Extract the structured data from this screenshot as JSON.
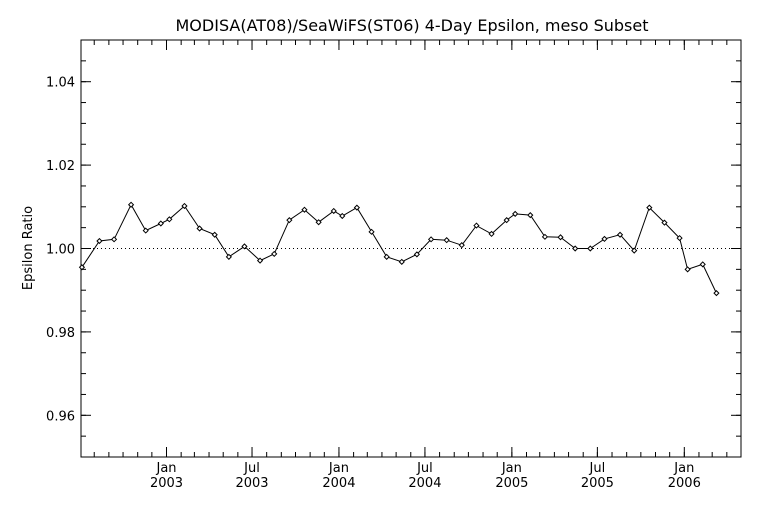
{
  "chart_data": {
    "type": "line",
    "title": "MODISA(AT08)/SeaWiFS(ST06) 4-Day Epsilon, meso Subset",
    "ylabel": "Epsilon Ratio",
    "xlabel": "",
    "ylim": [
      0.95,
      1.05
    ],
    "xlim": [
      "2002-07-04",
      "2006-05-01"
    ],
    "yticks": {
      "major": [
        0.96,
        0.98,
        1.0,
        1.02,
        1.04
      ],
      "labels": [
        "0.96",
        "0.98",
        "1.00",
        "1.02",
        "1.04"
      ],
      "minor_step": 0.005
    },
    "xticks": [
      {
        "date": "2003-01-01",
        "line1": "Jan",
        "line2": "2003"
      },
      {
        "date": "2003-07-01",
        "line1": "Jul",
        "line2": "2003"
      },
      {
        "date": "2004-01-01",
        "line1": "Jan",
        "line2": "2004"
      },
      {
        "date": "2004-07-01",
        "line1": "Jul",
        "line2": "2004"
      },
      {
        "date": "2005-01-01",
        "line1": "Jan",
        "line2": "2005"
      },
      {
        "date": "2005-07-01",
        "line1": "Jul",
        "line2": "2005"
      },
      {
        "date": "2006-01-01",
        "line1": "Jan",
        "line2": "2006"
      }
    ],
    "reference_line": {
      "y": 1.0,
      "style": "dotted"
    },
    "series": [
      {
        "marker": "diamond",
        "color": "#000000",
        "x": [
          "2002-07-06",
          "2002-08-12",
          "2002-09-12",
          "2002-10-18",
          "2002-11-18",
          "2002-12-20",
          "2003-01-07",
          "2003-02-08",
          "2003-03-12",
          "2003-04-13",
          "2003-05-13",
          "2003-06-15",
          "2003-07-18",
          "2003-08-17",
          "2003-09-18",
          "2003-10-20",
          "2003-11-19",
          "2003-12-21",
          "2004-01-08",
          "2004-02-08",
          "2004-03-10",
          "2004-04-11",
          "2004-05-13",
          "2004-06-14",
          "2004-07-14",
          "2004-08-16",
          "2004-09-17",
          "2004-10-18",
          "2004-11-19",
          "2004-12-21",
          "2005-01-08",
          "2005-02-09",
          "2005-03-12",
          "2005-04-14",
          "2005-05-15",
          "2005-06-16",
          "2005-07-16",
          "2005-08-18",
          "2005-09-17",
          "2005-10-19",
          "2005-11-20",
          "2005-12-22",
          "2006-01-08",
          "2006-02-09",
          "2006-03-10"
        ],
        "y": [
          0.9955,
          1.0018,
          1.0022,
          1.0105,
          1.0043,
          1.006,
          1.007,
          1.0102,
          1.0048,
          1.0033,
          0.998,
          1.0005,
          0.9971,
          0.9987,
          1.0068,
          1.0093,
          1.0063,
          1.009,
          1.0078,
          1.0098,
          1.004,
          0.998,
          0.9968,
          0.9986,
          1.0022,
          1.002,
          1.0008,
          1.0055,
          1.0035,
          1.0068,
          1.0083,
          1.008,
          1.0028,
          1.0027,
          1.0,
          1.0,
          1.0023,
          1.0033,
          0.9995,
          1.0098,
          1.0062,
          1.0025,
          0.995,
          0.9962,
          0.9893
        ]
      }
    ]
  }
}
